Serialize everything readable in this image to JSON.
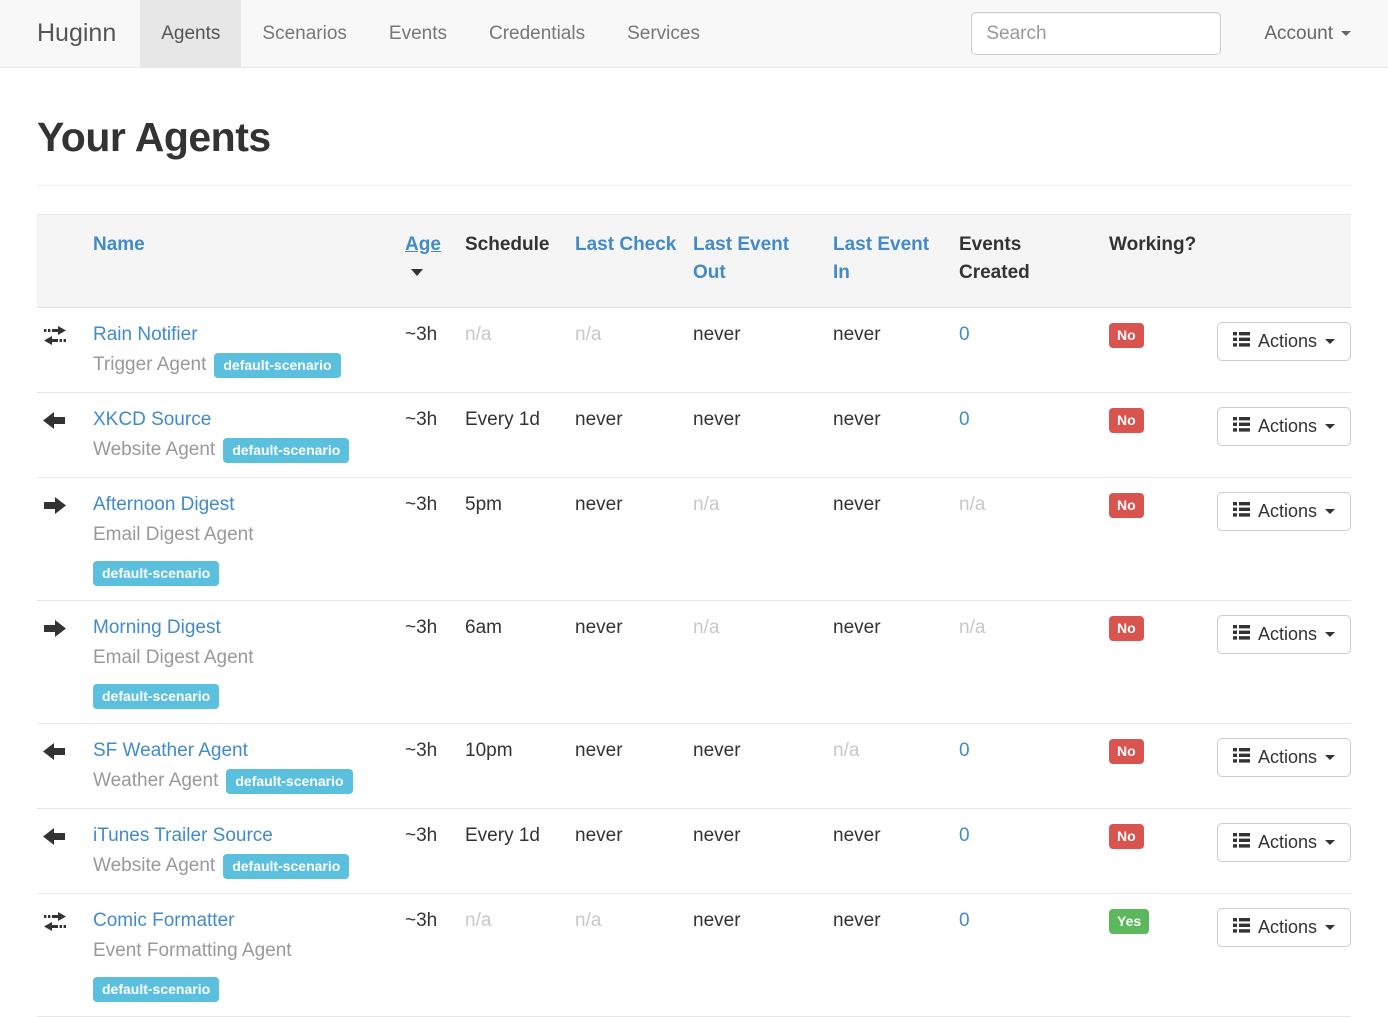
{
  "colors": {
    "link_blue": "#428bca",
    "badge_info": "#5bc0de",
    "working_no": "#d9534f",
    "working_yes": "#5cb85c",
    "navbar_bg": "#f8f8f8",
    "active_tab_bg": "#e7e7e7"
  },
  "navbar": {
    "brand": "Huginn",
    "tabs": [
      {
        "label": "Agents",
        "active": true
      },
      {
        "label": "Scenarios",
        "active": false
      },
      {
        "label": "Events",
        "active": false
      },
      {
        "label": "Credentials",
        "active": false
      },
      {
        "label": "Services",
        "active": false
      }
    ],
    "search_placeholder": "Search",
    "account_label": "Account"
  },
  "page": {
    "title": "Your Agents"
  },
  "table": {
    "headers": {
      "name": "Name",
      "age": "Age",
      "schedule": "Schedule",
      "last_check": "Last Check",
      "last_event_out": "Last Event Out",
      "last_event_in": "Last Event In",
      "events_created": "Events Created",
      "working": "Working?"
    },
    "actions_label": "Actions",
    "rows": [
      {
        "icon": "transfer",
        "name": "Rain Notifier",
        "type": "Trigger Agent",
        "badge": "default-scenario",
        "badge_own_line": false,
        "age": "~3h",
        "schedule": "n/a",
        "last_check": "n/a",
        "last_event_out": "never",
        "last_event_in": "never",
        "events_created": "0",
        "working": "No"
      },
      {
        "icon": "arrow-left",
        "name": "XKCD Source",
        "type": "Website Agent",
        "badge": "default-scenario",
        "badge_own_line": false,
        "age": "~3h",
        "schedule": "Every 1d",
        "last_check": "never",
        "last_event_out": "never",
        "last_event_in": "never",
        "events_created": "0",
        "working": "No"
      },
      {
        "icon": "arrow-right",
        "name": "Afternoon Digest",
        "type": "Email Digest Agent",
        "badge": "default-scenario",
        "badge_own_line": true,
        "age": "~3h",
        "schedule": "5pm",
        "last_check": "never",
        "last_event_out": "n/a",
        "last_event_in": "never",
        "events_created": "n/a",
        "working": "No"
      },
      {
        "icon": "arrow-right",
        "name": "Morning Digest",
        "type": "Email Digest Agent",
        "badge": "default-scenario",
        "badge_own_line": true,
        "age": "~3h",
        "schedule": "6am",
        "last_check": "never",
        "last_event_out": "n/a",
        "last_event_in": "never",
        "events_created": "n/a",
        "working": "No"
      },
      {
        "icon": "arrow-left",
        "name": "SF Weather Agent",
        "type": "Weather Agent",
        "badge": "default-scenario",
        "badge_own_line": false,
        "age": "~3h",
        "schedule": "10pm",
        "last_check": "never",
        "last_event_out": "never",
        "last_event_in": "n/a",
        "events_created": "0",
        "working": "No"
      },
      {
        "icon": "arrow-left",
        "name": "iTunes Trailer Source",
        "type": "Website Agent",
        "badge": "default-scenario",
        "badge_own_line": false,
        "age": "~3h",
        "schedule": "Every 1d",
        "last_check": "never",
        "last_event_out": "never",
        "last_event_in": "never",
        "events_created": "0",
        "working": "No"
      },
      {
        "icon": "transfer",
        "name": "Comic Formatter",
        "type": "Event Formatting Agent",
        "badge": "default-scenario",
        "badge_own_line": true,
        "age": "~3h",
        "schedule": "n/a",
        "last_check": "n/a",
        "last_event_out": "never",
        "last_event_in": "never",
        "events_created": "0",
        "working": "Yes"
      }
    ]
  }
}
